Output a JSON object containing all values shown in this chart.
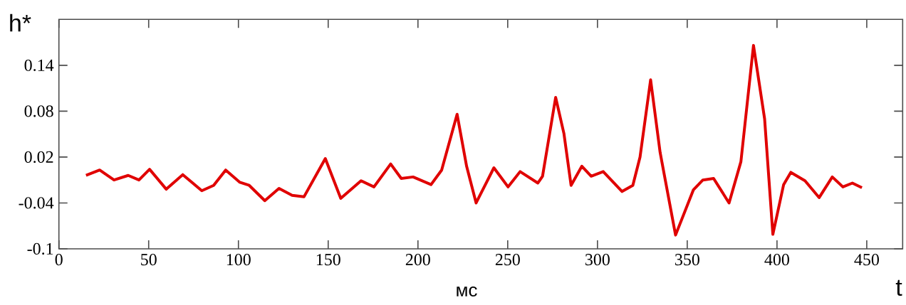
{
  "chart_data": {
    "type": "line",
    "ylabel": "h*",
    "xlabel": "t",
    "annotations": [
      "мс"
    ],
    "xlim": [
      0,
      470
    ],
    "xticks": [
      0,
      50,
      100,
      150,
      200,
      250,
      300,
      350,
      400,
      450
    ],
    "ylim": [
      -0.1,
      0.2
    ],
    "yticks": [
      -0.1,
      -0.04,
      0.02,
      0.08,
      0.14
    ],
    "x": [
      15.1,
      22.7,
      30.7,
      38.6,
      44.6,
      50.5,
      59.8,
      69,
      79.6,
      86.2,
      92.9,
      100.8,
      106,
      114.7,
      122.6,
      129.9,
      136.5,
      148.4,
      157,
      168.3,
      175.5,
      184.8,
      190.7,
      197.3,
      207.3,
      213.2,
      221.8,
      227.1,
      232.4,
      242.3,
      250.2,
      256.9,
      266.8,
      269.4,
      276.7,
      281.3,
      285.3,
      291.3,
      296.5,
      303.2,
      313.7,
      319.7,
      323.7,
      329.6,
      334.9,
      343.5,
      353.4,
      358.7,
      364.7,
      373.3,
      379.9,
      386.9,
      393.1,
      397.7,
      403.7,
      407.7,
      415.6,
      423.5,
      430.8,
      436.7,
      442,
      447.3
    ],
    "series": [
      {
        "color": "#e00000",
        "values": [
          -0.004,
          0.003,
          -0.01,
          -0.004,
          -0.01,
          0.004,
          -0.022,
          -0.003,
          -0.024,
          -0.017,
          0.003,
          -0.013,
          -0.017,
          -0.037,
          -0.021,
          -0.03,
          -0.032,
          0.018,
          -0.034,
          -0.011,
          -0.019,
          0.011,
          -0.008,
          -0.006,
          -0.016,
          0.003,
          0.076,
          0.008,
          -0.04,
          0.006,
          -0.019,
          0.001,
          -0.014,
          -0.005,
          0.098,
          0.051,
          -0.017,
          0.008,
          -0.005,
          0.001,
          -0.025,
          -0.017,
          0.02,
          0.121,
          0.026,
          -0.082,
          -0.023,
          -0.01,
          -0.008,
          -0.04,
          0.014,
          0.166,
          0.07,
          -0.081,
          -0.016,
          0.0,
          -0.011,
          -0.033,
          -0.006,
          -0.019,
          -0.014,
          -0.02
        ]
      }
    ]
  }
}
